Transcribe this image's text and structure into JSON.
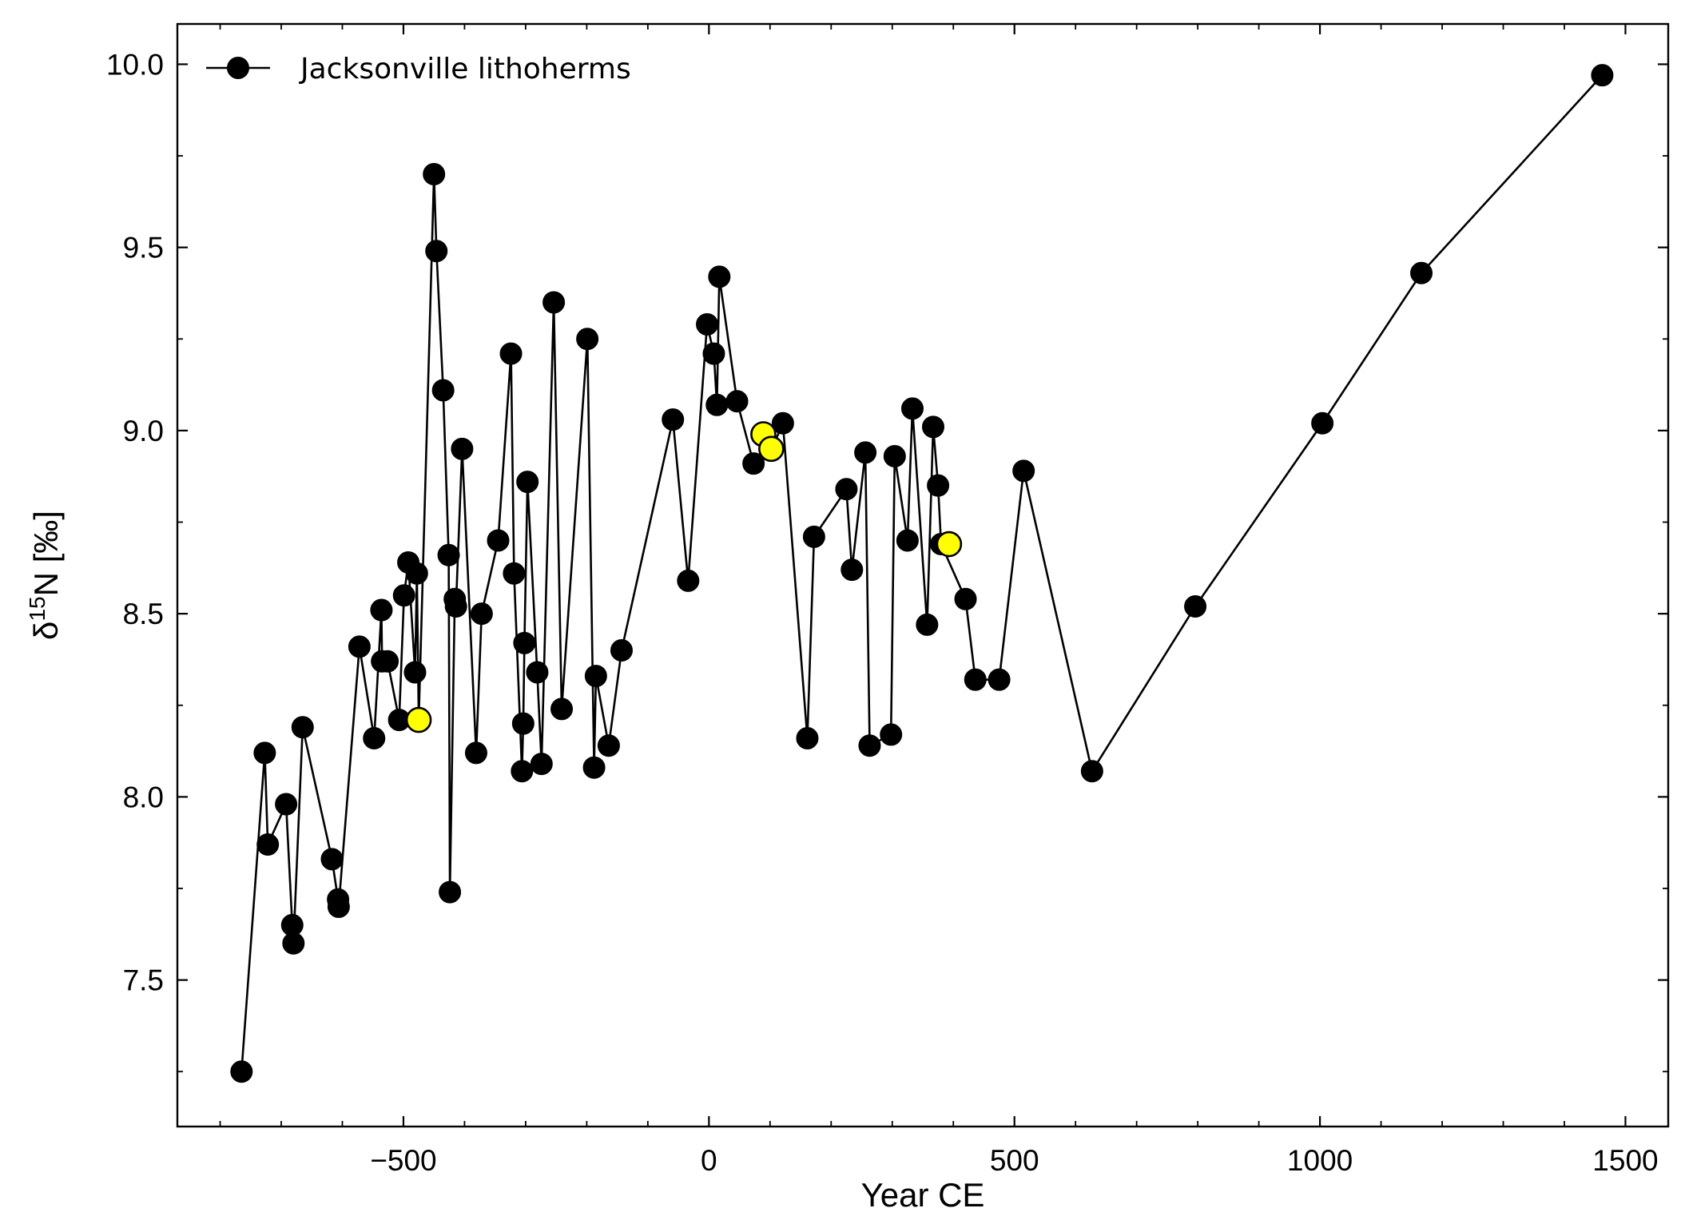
{
  "chart_data": {
    "type": "line",
    "xlabel": "Year CE",
    "ylabel_main": "δ",
    "ylabel_sup": "15",
    "ylabel_rest": "N [‰]",
    "xlim": [
      -870,
      1570
    ],
    "ylim": [
      7.1,
      10.11
    ],
    "xticks": [
      -500,
      0,
      500,
      1000,
      1500
    ],
    "xtick_labels": [
      "−500",
      "0",
      "500",
      "1000",
      "1500"
    ],
    "xminor_step": 100,
    "yticks": [
      7.5,
      8.0,
      8.5,
      9.0,
      9.5,
      10.0
    ],
    "ytick_labels": [
      "7.5",
      "8.0",
      "8.5",
      "9.0",
      "9.5",
      "10.0"
    ],
    "yminor_step": 0.25,
    "grid": false,
    "legend_position": "top-left",
    "line_color": "#000000",
    "marker_color": "#000000",
    "highlight_color": "#ffff00",
    "series": [
      {
        "name": "Jacksonville lithoherms",
        "x": [
          -765,
          -727,
          -722,
          -692,
          -682,
          -680,
          -665,
          -617,
          -607,
          -606,
          -572,
          -548,
          -536,
          -535,
          -526,
          -507,
          -499,
          -492,
          -481,
          -478,
          -475,
          -450,
          -446,
          -435,
          -426,
          -424,
          -416,
          -414,
          -404,
          -381,
          -372,
          -345,
          -324,
          -319,
          -306,
          -304,
          -302,
          -297,
          -281,
          -274,
          -254,
          -241,
          -199,
          -188,
          -185,
          -164,
          -143,
          -59,
          -34,
          -3,
          8,
          13,
          17,
          46,
          73,
          103,
          121,
          161,
          172,
          225,
          234,
          256,
          263,
          298,
          304,
          325,
          333,
          357,
          367,
          375,
          380,
          420,
          436,
          475,
          515,
          627,
          796,
          1004,
          1166,
          1462
        ],
        "y": [
          7.25,
          8.12,
          7.87,
          7.98,
          7.65,
          7.6,
          8.19,
          7.83,
          7.72,
          7.7,
          8.41,
          8.16,
          8.51,
          8.37,
          8.37,
          8.21,
          8.55,
          8.64,
          8.34,
          8.61,
          8.21,
          9.7,
          9.49,
          9.11,
          8.66,
          7.74,
          8.54,
          8.52,
          8.95,
          8.12,
          8.5,
          8.7,
          9.21,
          8.61,
          8.07,
          8.2,
          8.42,
          8.86,
          8.34,
          8.09,
          9.35,
          8.24,
          9.25,
          8.08,
          8.33,
          8.14,
          8.4,
          9.03,
          8.59,
          9.29,
          9.21,
          9.07,
          9.42,
          9.08,
          8.91,
          8.95,
          9.02,
          8.16,
          8.71,
          8.84,
          8.62,
          8.94,
          8.14,
          8.17,
          8.93,
          8.7,
          9.06,
          8.47,
          9.01,
          8.85,
          8.69,
          8.54,
          8.32,
          8.32,
          8.89,
          8.07,
          8.52,
          9.02,
          9.43,
          9.97
        ]
      }
    ],
    "highlighted_points": [
      {
        "x": -475,
        "y": 8.21
      },
      {
        "x": 89,
        "y": 8.99
      },
      {
        "x": 102,
        "y": 8.95
      },
      {
        "x": 393,
        "y": 8.69
      }
    ]
  }
}
